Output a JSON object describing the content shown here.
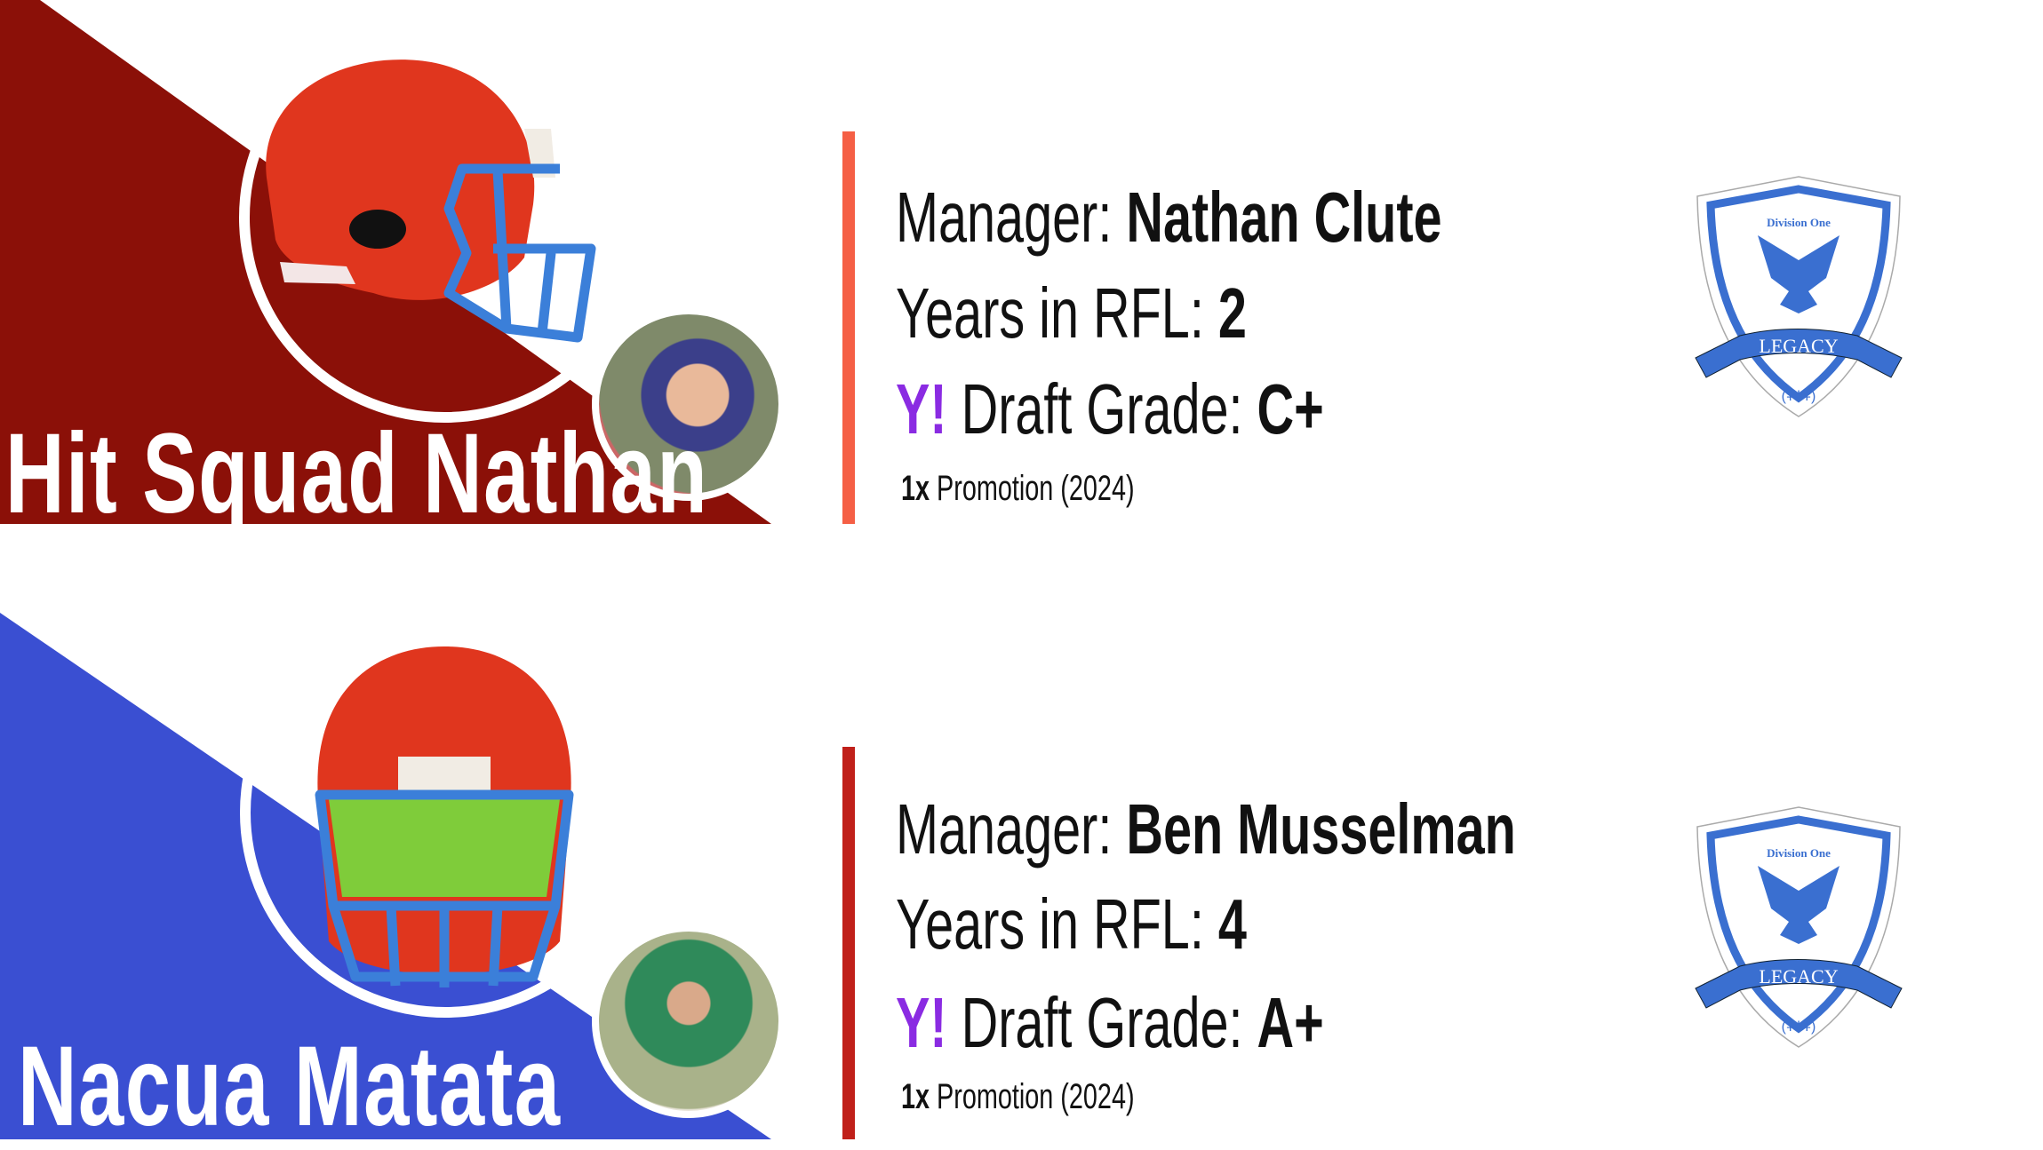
{
  "teams": [
    {
      "team_name": "Hit Squad Nathan",
      "manager_label": "Manager:",
      "manager": "Nathan Clute",
      "years_label": "Years in RFL:",
      "years": "2",
      "grade_prefix": "Y!",
      "grade_label": "Draft Grade:",
      "grade": "C+",
      "promo_count": "1x",
      "promo_text": "Promotion (2024)",
      "bg_color": "#8b1008",
      "bar_color": "#f55f45",
      "logo": {
        "division": "Division One",
        "banner": "LEGACY"
      }
    },
    {
      "team_name": "Nacua Matata",
      "manager_label": "Manager:",
      "manager": "Ben Musselman",
      "years_label": "Years in RFL:",
      "years": "4",
      "grade_prefix": "Y!",
      "grade_label": "Draft Grade:",
      "grade": "A+",
      "promo_count": "1x",
      "promo_text": "Promotion (2024)",
      "bg_color": "#3a4fd2",
      "bar_color": "#c0201a",
      "logo": {
        "division": "Division One",
        "banner": "LEGACY"
      }
    }
  ]
}
